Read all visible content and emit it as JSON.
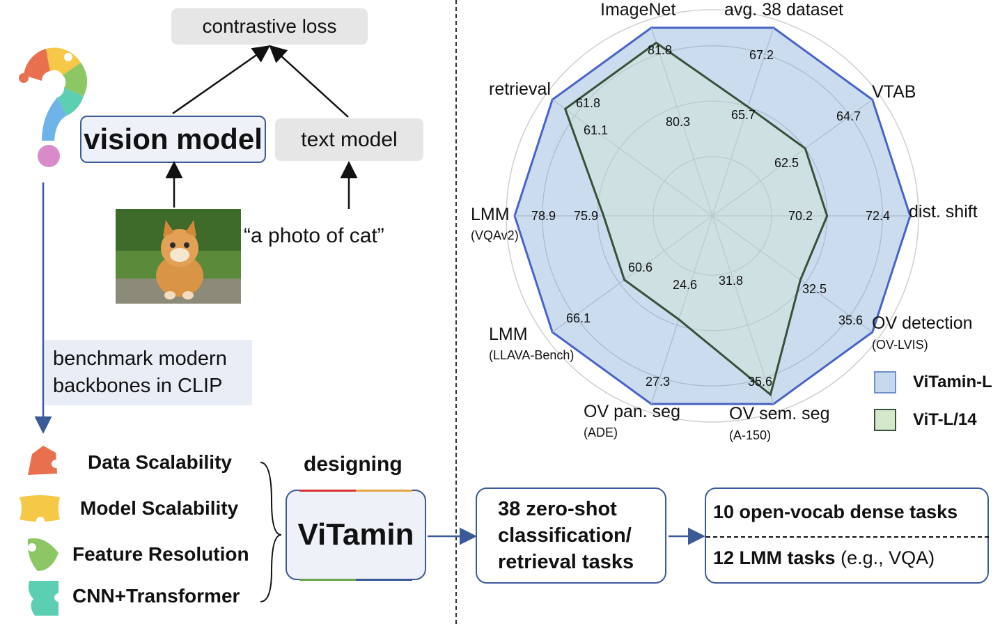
{
  "left": {
    "loss_label": "contrastive loss",
    "vision_model": "vision model",
    "text_model": "text model",
    "caption": "“a photo of cat”",
    "benchmark_line1": "benchmark modern",
    "benchmark_line2": "backbones in CLIP",
    "features": [
      "Data Scalability",
      "Model Scalability",
      "Feature Resolution",
      "CNN+Transformer"
    ],
    "designing": "designing",
    "vitamin": "ViTamin"
  },
  "flow": {
    "box1_line1": "38 zero-shot",
    "box1_line2": "classification/",
    "box1_line3": "retrieval tasks",
    "box2_top": "10 open-vocab dense tasks",
    "box2_bottom_bold": "12 LMM tasks",
    "box2_bottom_rest": " (e.g., VQA)"
  },
  "colors": {
    "vitamin_fill": "#c5d8ec",
    "vitamin_stroke": "#4a63c8",
    "vit_fill": "#d6e8cc",
    "vit_stroke": "#37513a",
    "arrow_blue": "#3b5a99",
    "puzzle": [
      "#e8704f",
      "#f6c847",
      "#8cc665",
      "#5ccfb3",
      "#6fb4e8",
      "#d98ac9"
    ]
  },
  "chart_data": {
    "type": "radar",
    "axes": [
      {
        "name": "ImageNet",
        "sub": ""
      },
      {
        "name": "avg. 38 dataset",
        "sub": ""
      },
      {
        "name": "VTAB",
        "sub": ""
      },
      {
        "name": "dist. shift",
        "sub": ""
      },
      {
        "name": "OV detection",
        "sub": "(OV-LVIS)"
      },
      {
        "name": "OV sem. seg",
        "sub": "(A-150)"
      },
      {
        "name": "OV pan. seg",
        "sub": "(ADE)"
      },
      {
        "name": "LMM",
        "sub": "(LLAVA-Bench)"
      },
      {
        "name": "LMM",
        "sub": "(VQAv2)"
      },
      {
        "name": "retrieval",
        "sub": ""
      }
    ],
    "series": [
      {
        "name": "ViTamin-L",
        "values": [
          81.8,
          67.2,
          64.7,
          72.4,
          35.6,
          35.6,
          27.3,
          66.1,
          78.9,
          61.8
        ],
        "relative": [
          1,
          1,
          1,
          1,
          1,
          1,
          1,
          1,
          1,
          1
        ]
      },
      {
        "name": "ViT-L/14",
        "values": [
          80.3,
          65.7,
          62.5,
          70.2,
          32.5,
          31.8,
          24.6,
          60.6,
          75.9,
          61.1
        ],
        "relative": [
          0.58,
          0.58,
          0.58,
          0.55,
          0.95,
          0.55,
          0.55,
          0.55,
          0.92,
          0.92
        ]
      }
    ]
  }
}
